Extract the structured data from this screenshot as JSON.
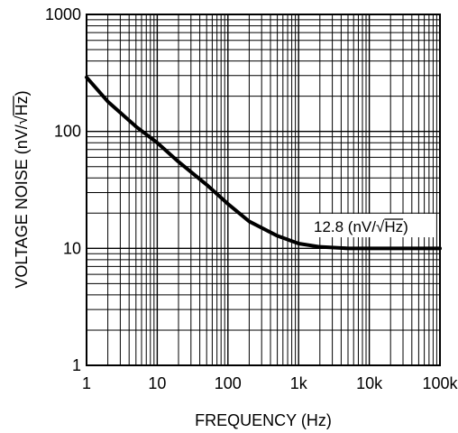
{
  "chart_data": {
    "type": "line",
    "title": "",
    "xlabel": "FREQUENCY (Hz)",
    "ylabel_prefix": "VOLTAGE NOISE (nV/",
    "ylabel_radical": "√",
    "ylabel_radicand": "Hz",
    "ylabel_suffix": ")",
    "x_scale": "log",
    "y_scale": "log",
    "xlim": [
      1,
      100000
    ],
    "ylim": [
      1,
      1000
    ],
    "x_ticks": [
      {
        "value": 1,
        "label": "1"
      },
      {
        "value": 10,
        "label": "10"
      },
      {
        "value": 100,
        "label": "100"
      },
      {
        "value": 1000,
        "label": "1k"
      },
      {
        "value": 10000,
        "label": "10k"
      },
      {
        "value": 100000,
        "label": "100k"
      }
    ],
    "y_ticks": [
      {
        "value": 1,
        "label": "1"
      },
      {
        "value": 10,
        "label": "10"
      },
      {
        "value": 100,
        "label": "100"
      },
      {
        "value": 1000,
        "label": "1000"
      }
    ],
    "grid": true,
    "series": [
      {
        "x": [
          1,
          2,
          5,
          10,
          20,
          50,
          100,
          200,
          500,
          1000,
          2000,
          5000,
          10000,
          20000,
          50000,
          100000
        ],
        "y": [
          290,
          180,
          110,
          80,
          55,
          35,
          24,
          17,
          12.8,
          11,
          10.3,
          10,
          10,
          10,
          10,
          10
        ]
      }
    ],
    "annotation": {
      "prefix": "12.8 (nV/",
      "radical": "√",
      "radicand": "Hz",
      "suffix": ")"
    }
  }
}
